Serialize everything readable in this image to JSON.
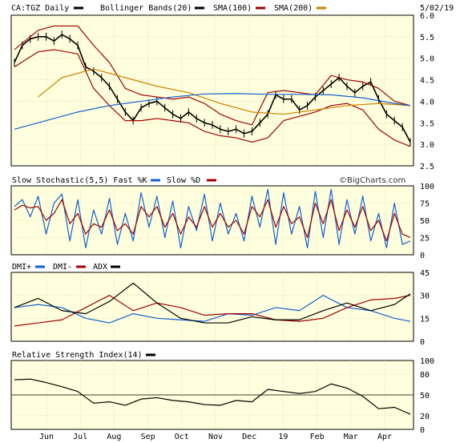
{
  "header": {
    "symbol": "CA:TGZ Daily",
    "date": "5/02/19",
    "legend": [
      {
        "label": "Bollinger Bands(20)",
        "color": "#000000"
      },
      {
        "label": "SMA(100)",
        "color": "#a00000"
      },
      {
        "label": "SMA(200)",
        "color": "#d08000"
      },
      {
        "label": "",
        "color": "#1060d0"
      }
    ]
  },
  "watermark": "©BigCharts.com",
  "x_labels": [
    "Jun",
    "Jul",
    "Aug",
    "Sep",
    "Oct",
    "Nov",
    "Dec",
    "19",
    "Feb",
    "Mar",
    "Apr"
  ],
  "chart_data": [
    {
      "panel": "price",
      "type": "line",
      "ylim": [
        2.5,
        6.0
      ],
      "yticks": [
        "6.0",
        "5.5",
        "5.0",
        "4.5",
        "4.0",
        "3.5",
        "3.0",
        "2.5"
      ],
      "series": [
        {
          "name": "CA:TGZ Daily",
          "color": "#000000",
          "x": [
            0,
            1,
            2,
            3,
            4,
            5,
            6,
            7,
            8,
            9,
            10,
            11,
            12,
            13,
            14,
            15,
            16,
            17,
            18,
            19,
            20,
            21,
            22,
            23,
            24,
            25,
            26,
            27,
            28,
            29,
            30,
            31,
            32,
            33,
            34,
            35,
            36,
            37,
            38,
            39,
            40,
            41,
            42,
            43,
            44,
            45,
            46,
            47,
            48,
            49,
            50
          ],
          "values": [
            4.9,
            5.3,
            5.45,
            5.5,
            5.5,
            5.4,
            5.55,
            5.45,
            5.3,
            4.8,
            4.7,
            4.55,
            4.35,
            4.05,
            3.75,
            3.55,
            3.85,
            3.95,
            4.0,
            3.85,
            3.7,
            3.6,
            3.75,
            3.6,
            3.5,
            3.45,
            3.35,
            3.3,
            3.35,
            3.25,
            3.3,
            3.5,
            3.7,
            4.15,
            4.05,
            4.05,
            3.8,
            3.9,
            4.1,
            4.25,
            4.4,
            4.55,
            4.35,
            4.2,
            4.35,
            4.45,
            4.05,
            3.7,
            3.55,
            3.4,
            3.05
          ]
        },
        {
          "name": "BB Upper",
          "color": "#a00000",
          "x": [
            0,
            3,
            5,
            8,
            10,
            12,
            14,
            16,
            18,
            20,
            22,
            24,
            26,
            28,
            30,
            32,
            34,
            36,
            38,
            40,
            42,
            44,
            46,
            48,
            50
          ],
          "values": [
            5.2,
            5.65,
            5.75,
            5.75,
            5.3,
            4.9,
            4.3,
            4.15,
            4.1,
            4.05,
            4.1,
            3.95,
            3.7,
            3.55,
            3.45,
            4.2,
            4.25,
            4.2,
            4.15,
            4.6,
            4.5,
            4.45,
            4.3,
            4.0,
            3.9
          ]
        },
        {
          "name": "BB Lower",
          "color": "#a00000",
          "x": [
            0,
            3,
            5,
            8,
            10,
            12,
            14,
            16,
            18,
            20,
            22,
            24,
            26,
            28,
            30,
            32,
            34,
            36,
            38,
            40,
            42,
            44,
            46,
            48,
            50
          ],
          "values": [
            4.8,
            5.15,
            5.2,
            5.1,
            4.3,
            3.9,
            3.55,
            3.55,
            3.6,
            3.55,
            3.5,
            3.3,
            3.2,
            3.15,
            3.05,
            3.15,
            3.55,
            3.65,
            3.75,
            3.9,
            3.95,
            3.8,
            3.35,
            3.1,
            2.95
          ]
        },
        {
          "name": "SMA(100)",
          "color": "#d08000",
          "x": [
            3,
            6,
            10,
            14,
            18,
            22,
            26,
            30,
            34,
            38,
            42,
            46,
            50
          ],
          "values": [
            4.1,
            4.55,
            4.75,
            4.55,
            4.35,
            4.2,
            3.95,
            3.75,
            3.7,
            3.8,
            3.9,
            3.95,
            3.9
          ]
        },
        {
          "name": "SMA(200)",
          "color": "#1060d0",
          "x": [
            0,
            4,
            8,
            12,
            16,
            20,
            24,
            28,
            32,
            36,
            40,
            44,
            48,
            50
          ],
          "values": [
            3.35,
            3.55,
            3.75,
            3.9,
            4.0,
            4.1,
            4.17,
            4.18,
            4.16,
            4.16,
            4.15,
            4.08,
            3.95,
            3.9
          ]
        }
      ]
    },
    {
      "panel": "stochastic",
      "type": "line",
      "title": "Slow Stochastic(5,5) Fast %K",
      "title2": "Slow %D",
      "ylim": [
        0,
        100
      ],
      "yticks": [
        "100",
        "75",
        "50",
        "25",
        "0"
      ],
      "series": [
        {
          "name": "Fast %K",
          "color": "#1060d0",
          "x": [
            0,
            1,
            2,
            3,
            4,
            5,
            6,
            7,
            8,
            9,
            10,
            11,
            12,
            13,
            14,
            15,
            16,
            17,
            18,
            19,
            20,
            21,
            22,
            23,
            24,
            25,
            26,
            27,
            28,
            29,
            30,
            31,
            32,
            33,
            34,
            35,
            36,
            37,
            38,
            39,
            40,
            41,
            42,
            43,
            44,
            45,
            46,
            47,
            48,
            49,
            50
          ],
          "values": [
            70,
            80,
            55,
            85,
            30,
            75,
            88,
            20,
            80,
            10,
            65,
            30,
            82,
            15,
            60,
            20,
            90,
            40,
            85,
            25,
            78,
            10,
            70,
            35,
            88,
            20,
            75,
            30,
            60,
            20,
            85,
            40,
            95,
            15,
            90,
            30,
            70,
            10,
            92,
            25,
            95,
            15,
            80,
            30,
            85,
            20,
            60,
            10,
            75,
            15,
            20
          ]
        },
        {
          "name": "Slow %D",
          "color": "#a00000",
          "x": [
            0,
            1,
            2,
            3,
            4,
            5,
            6,
            7,
            8,
            9,
            10,
            11,
            12,
            13,
            14,
            15,
            16,
            17,
            18,
            19,
            20,
            21,
            22,
            23,
            24,
            25,
            26,
            27,
            28,
            29,
            30,
            31,
            32,
            33,
            34,
            35,
            36,
            37,
            38,
            39,
            40,
            41,
            42,
            43,
            44,
            45,
            46,
            47,
            48,
            49,
            50
          ],
          "values": [
            65,
            72,
            68,
            70,
            50,
            60,
            80,
            45,
            60,
            30,
            45,
            40,
            65,
            35,
            45,
            30,
            70,
            55,
            70,
            40,
            60,
            30,
            55,
            40,
            70,
            40,
            60,
            40,
            50,
            30,
            70,
            55,
            80,
            40,
            70,
            45,
            55,
            25,
            75,
            45,
            80,
            35,
            65,
            40,
            70,
            35,
            50,
            20,
            60,
            30,
            25
          ]
        }
      ]
    },
    {
      "panel": "dmi",
      "type": "line",
      "ylim": [
        0,
        45
      ],
      "yticks": [
        "45",
        "30",
        "15",
        "0"
      ],
      "series": [
        {
          "name": "DMI+",
          "color": "#1060d0",
          "x": [
            0,
            3,
            6,
            9,
            12,
            15,
            18,
            21,
            24,
            27,
            30,
            33,
            36,
            39,
            42,
            45,
            48,
            50
          ],
          "values": [
            22,
            24,
            22,
            15,
            12,
            18,
            15,
            14,
            13,
            18,
            17,
            22,
            20,
            30,
            22,
            20,
            15,
            13
          ]
        },
        {
          "name": "DMI-",
          "color": "#a00000",
          "x": [
            0,
            3,
            6,
            9,
            12,
            15,
            18,
            21,
            24,
            27,
            30,
            33,
            36,
            39,
            42,
            45,
            48,
            50
          ],
          "values": [
            10,
            12,
            14,
            22,
            30,
            20,
            25,
            22,
            17,
            18,
            18,
            14,
            13,
            15,
            22,
            27,
            28,
            30
          ]
        },
        {
          "name": "ADX",
          "color": "#000000",
          "x": [
            0,
            3,
            6,
            9,
            12,
            15,
            18,
            21,
            24,
            27,
            30,
            33,
            36,
            39,
            42,
            45,
            48,
            50
          ],
          "values": [
            22,
            28,
            20,
            18,
            26,
            38,
            25,
            15,
            12,
            12,
            16,
            14,
            14,
            20,
            25,
            20,
            24,
            31
          ]
        }
      ]
    },
    {
      "panel": "rsi",
      "type": "line",
      "title": "Relative Strength Index(14)",
      "ylim": [
        0,
        100
      ],
      "yticks": [
        "100",
        "80",
        "50",
        "20",
        "0"
      ],
      "series": [
        {
          "name": "RSI(14)",
          "color": "#000000",
          "x": [
            0,
            2,
            4,
            6,
            8,
            10,
            12,
            14,
            16,
            18,
            20,
            22,
            24,
            26,
            28,
            30,
            32,
            34,
            36,
            38,
            40,
            42,
            44,
            46,
            48,
            50
          ],
          "values": [
            72,
            73,
            68,
            62,
            55,
            38,
            40,
            35,
            44,
            46,
            42,
            40,
            36,
            35,
            42,
            40,
            58,
            55,
            52,
            55,
            66,
            60,
            48,
            30,
            32,
            22
          ]
        }
      ]
    }
  ],
  "dmi_labels": {
    "plus": "DMI+",
    "minus": "DMI-",
    "adx": "ADX"
  }
}
